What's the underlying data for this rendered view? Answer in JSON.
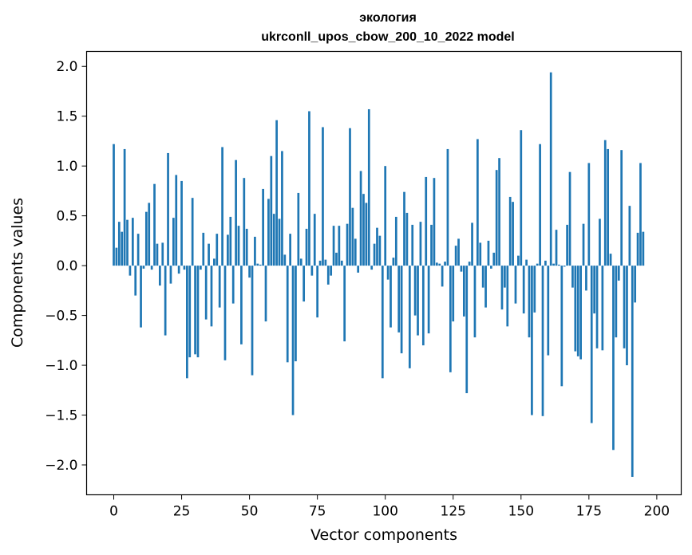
{
  "chart_data": {
    "type": "bar",
    "title": "экология",
    "subtitle": "ukrconll_upos_cbow_200_10_2022 model",
    "xlabel": "Vector components",
    "ylabel": "Components values",
    "xlim": [
      -10,
      209
    ],
    "ylim": [
      -2.3,
      2.15
    ],
    "xticks": [
      0,
      25,
      50,
      75,
      100,
      125,
      150,
      175,
      200
    ],
    "yticks": [
      -2.0,
      -1.5,
      -1.0,
      -0.5,
      0.0,
      0.5,
      1.0,
      1.5,
      2.0
    ],
    "xtick_labels": [
      "0",
      "25",
      "50",
      "75",
      "100",
      "125",
      "150",
      "175",
      "200"
    ],
    "ytick_labels": [
      "−2.0",
      "−1.5",
      "−1.0",
      "−0.5",
      "0.0",
      "0.5",
      "1.0",
      "1.5",
      "2.0"
    ],
    "bar_color": "#1f77b4",
    "grid": false,
    "values": [
      1.22,
      0.18,
      0.44,
      0.34,
      1.17,
      0.46,
      -0.1,
      0.48,
      -0.3,
      0.32,
      -0.62,
      -0.03,
      0.54,
      0.63,
      -0.04,
      0.82,
      0.22,
      -0.2,
      0.23,
      -0.7,
      1.13,
      -0.18,
      0.48,
      0.91,
      -0.08,
      0.85,
      -0.04,
      -1.13,
      -0.92,
      0.68,
      -0.89,
      -0.92,
      -0.04,
      0.33,
      -0.54,
      0.22,
      -0.61,
      0.07,
      0.32,
      -0.42,
      1.19,
      -0.95,
      0.31,
      0.49,
      -0.38,
      1.06,
      0.4,
      -0.79,
      0.88,
      0.37,
      -0.12,
      -1.1,
      0.29,
      0.02,
      0.01,
      0.77,
      -0.56,
      0.67,
      1.1,
      0.52,
      1.46,
      0.47,
      1.15,
      0.11,
      -0.97,
      0.32,
      -1.5,
      -0.96,
      0.73,
      0.07,
      -0.36,
      0.37,
      1.55,
      -0.1,
      0.52,
      -0.52,
      0.05,
      1.39,
      0.06,
      -0.19,
      -0.1,
      0.4,
      0.13,
      0.4,
      0.05,
      -0.76,
      0.42,
      1.38,
      0.58,
      0.27,
      -0.07,
      0.95,
      0.72,
      0.63,
      1.57,
      -0.04,
      0.22,
      0.38,
      0.3,
      -1.13,
      1.0,
      -0.14,
      -0.62,
      0.08,
      0.49,
      -0.67,
      -0.88,
      0.74,
      0.53,
      -1.03,
      0.41,
      -0.5,
      -0.7,
      0.44,
      -0.8,
      0.89,
      -0.68,
      0.41,
      0.88,
      0.03,
      0.02,
      -0.21,
      0.04,
      1.17,
      -1.07,
      -0.56,
      0.2,
      0.27,
      -0.06,
      -0.51,
      -1.28,
      0.04,
      0.43,
      -0.72,
      1.27,
      0.23,
      -0.22,
      -0.42,
      0.25,
      -0.03,
      0.13,
      0.96,
      1.08,
      -0.44,
      -0.22,
      -0.61,
      0.69,
      0.64,
      -0.38,
      0.1,
      1.36,
      -0.48,
      0.06,
      -0.72,
      -1.5,
      -0.47,
      0.02,
      1.22,
      -1.51,
      0.05,
      -0.9,
      1.94,
      0.02,
      0.36,
      0.01,
      -1.21,
      -0.01,
      0.41,
      0.94,
      -0.22,
      -0.86,
      -0.91,
      -0.94,
      0.42,
      -0.25,
      1.03,
      -1.58,
      -0.48,
      -0.83,
      0.47,
      -0.85,
      1.26,
      1.17,
      0.12,
      -1.85,
      -0.72,
      -0.15,
      1.16,
      -0.83,
      -1.0,
      0.6,
      -2.12,
      -0.37,
      0.33,
      1.03,
      0.34
    ]
  }
}
